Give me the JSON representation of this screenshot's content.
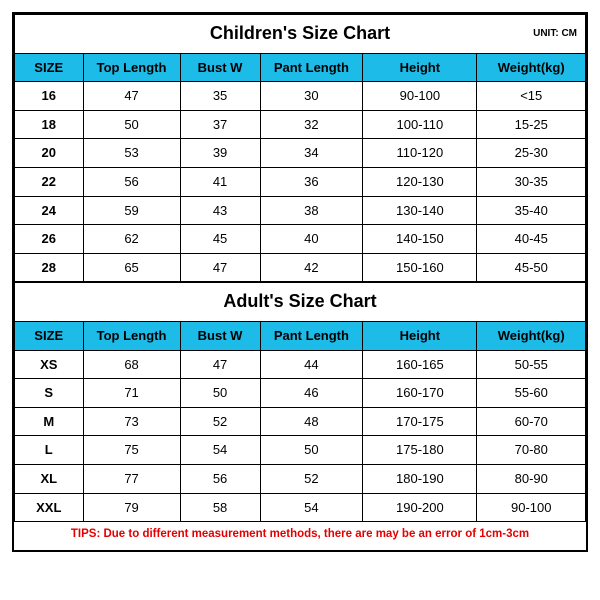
{
  "colors": {
    "header_bg": "#1dbbe8",
    "border": "#000000",
    "tips_text": "#e40000",
    "background": "#ffffff"
  },
  "unit_label": "UNIT: CM",
  "children": {
    "title": "Children's Size Chart",
    "columns": [
      "SIZE",
      "Top Length",
      "Bust W",
      "Pant Length",
      "Height",
      "Weight(kg)"
    ],
    "rows": [
      [
        "16",
        "47",
        "35",
        "30",
        "90-100",
        "<15"
      ],
      [
        "18",
        "50",
        "37",
        "32",
        "100-110",
        "15-25"
      ],
      [
        "20",
        "53",
        "39",
        "34",
        "110-120",
        "25-30"
      ],
      [
        "22",
        "56",
        "41",
        "36",
        "120-130",
        "30-35"
      ],
      [
        "24",
        "59",
        "43",
        "38",
        "130-140",
        "35-40"
      ],
      [
        "26",
        "62",
        "45",
        "40",
        "140-150",
        "40-45"
      ],
      [
        "28",
        "65",
        "47",
        "42",
        "150-160",
        "45-50"
      ]
    ]
  },
  "adult": {
    "title": "Adult's Size Chart",
    "columns": [
      "SIZE",
      "Top Length",
      "Bust W",
      "Pant Length",
      "Height",
      "Weight(kg)"
    ],
    "rows": [
      [
        "XS",
        "68",
        "47",
        "44",
        "160-165",
        "50-55"
      ],
      [
        "S",
        "71",
        "50",
        "46",
        "160-170",
        "55-60"
      ],
      [
        "M",
        "73",
        "52",
        "48",
        "170-175",
        "60-70"
      ],
      [
        "L",
        "75",
        "54",
        "50",
        "175-180",
        "70-80"
      ],
      [
        "XL",
        "77",
        "56",
        "52",
        "180-190",
        "80-90"
      ],
      [
        "XXL",
        "79",
        "58",
        "54",
        "190-200",
        "90-100"
      ]
    ]
  },
  "tips": "TIPS: Due to different measurement methods, there are may be an error of 1cm-3cm"
}
